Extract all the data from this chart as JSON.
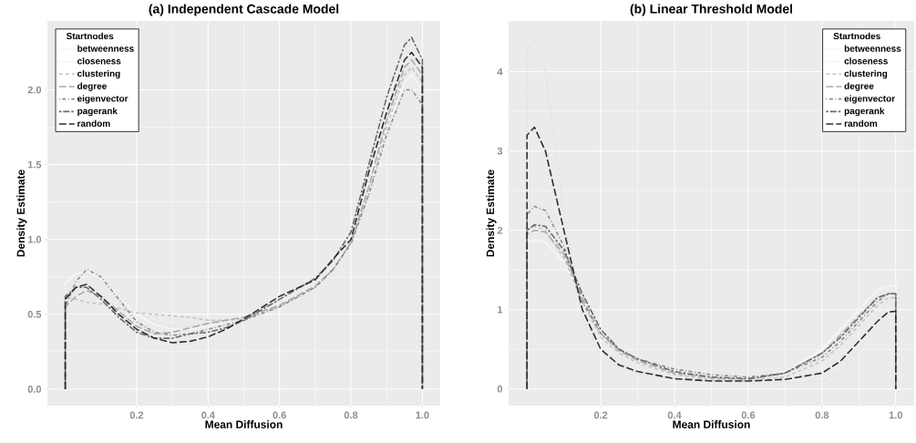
{
  "chart_data": [
    {
      "type": "line",
      "title": "(a) Independent Cascade Model",
      "xlabel": "Mean Diffusion",
      "ylabel": "Density Estimate",
      "legend_title": "Startnodes",
      "legend": "top left",
      "grid": true,
      "xlim": [
        -0.05,
        1.05
      ],
      "ylim": [
        -0.11,
        2.46
      ],
      "xticks": [
        {
          "value": 0.2,
          "label": "0.2"
        },
        {
          "value": 0.4,
          "label": "0.4"
        },
        {
          "value": 0.6,
          "label": "0.6"
        },
        {
          "value": 0.8,
          "label": "0.8"
        },
        {
          "value": 1,
          "label": "1.0"
        }
      ],
      "yticks": [
        {
          "value": 0,
          "label": "0.0"
        },
        {
          "value": 0.5,
          "label": "0.5"
        },
        {
          "value": 1,
          "label": "1.0"
        },
        {
          "value": 1.5,
          "label": "1.5"
        },
        {
          "value": 2,
          "label": "2.0"
        }
      ],
      "x": [
        0,
        0,
        0.03,
        0.06,
        0.1,
        0.15,
        0.2,
        0.25,
        0.3,
        0.35,
        0.4,
        0.45,
        0.5,
        0.6,
        0.7,
        0.75,
        0.8,
        0.85,
        0.9,
        0.95,
        0.97,
        1,
        1
      ],
      "series": [
        {
          "name": "betweenness",
          "color": "#f7f7f7",
          "line_style": "solid",
          "values": [
            0,
            0.7,
            0.77,
            0.79,
            0.74,
            0.62,
            0.5,
            0.43,
            0.4,
            0.4,
            0.42,
            0.45,
            0.48,
            0.57,
            0.7,
            0.82,
            1.0,
            1.3,
            1.75,
            2.05,
            2.1,
            2.0,
            0
          ]
        },
        {
          "name": "closeness",
          "color": "#dcdcdc",
          "line_style": "dotted",
          "values": [
            0,
            0.68,
            0.75,
            0.77,
            0.72,
            0.62,
            0.52,
            0.45,
            0.42,
            0.42,
            0.43,
            0.45,
            0.48,
            0.57,
            0.7,
            0.82,
            1.0,
            1.35,
            1.8,
            2.1,
            2.15,
            2.05,
            0
          ]
        },
        {
          "name": "clustering",
          "color": "#c4c4c4",
          "line_style": "dashed",
          "values": [
            0,
            0.62,
            0.6,
            0.58,
            0.57,
            0.54,
            0.51,
            0.5,
            0.49,
            0.48,
            0.46,
            0.46,
            0.47,
            0.55,
            0.68,
            0.8,
            0.98,
            1.3,
            1.75,
            2.1,
            2.15,
            2.05,
            0
          ]
        },
        {
          "name": "degree",
          "color": "#aaaaaa",
          "line_style": "longdash",
          "values": [
            0,
            0.55,
            0.62,
            0.66,
            0.62,
            0.52,
            0.42,
            0.37,
            0.38,
            0.41,
            0.44,
            0.46,
            0.48,
            0.56,
            0.69,
            0.8,
            0.98,
            1.35,
            1.8,
            2.15,
            2.2,
            2.1,
            0
          ]
        },
        {
          "name": "eigenvector",
          "color": "#8c8c8c",
          "line_style": "dotdash",
          "values": [
            0,
            0.55,
            0.72,
            0.8,
            0.75,
            0.6,
            0.45,
            0.38,
            0.36,
            0.37,
            0.4,
            0.43,
            0.46,
            0.55,
            0.68,
            0.8,
            0.97,
            1.3,
            1.7,
            2.0,
            2.0,
            1.9,
            0
          ]
        },
        {
          "name": "pagerank",
          "color": "#6a6a6a",
          "line_style": "twodash",
          "values": [
            0,
            0.62,
            0.68,
            0.68,
            0.6,
            0.48,
            0.38,
            0.34,
            0.34,
            0.37,
            0.38,
            0.41,
            0.46,
            0.6,
            0.74,
            0.86,
            1.05,
            1.5,
            1.95,
            2.3,
            2.35,
            2.2,
            0
          ]
        },
        {
          "name": "random",
          "color": "#2e2e2e",
          "line_style": "longdash",
          "values": [
            0,
            0.6,
            0.68,
            0.7,
            0.62,
            0.5,
            0.4,
            0.34,
            0.31,
            0.32,
            0.35,
            0.4,
            0.47,
            0.62,
            0.73,
            0.87,
            1.0,
            1.45,
            1.85,
            2.2,
            2.25,
            2.15,
            0
          ]
        }
      ]
    },
    {
      "type": "line",
      "title": "(b) Linear Threshold Model",
      "xlabel": "Mean Diffusion",
      "ylabel": "Density Estimate",
      "legend_title": "Startnodes",
      "legend": "top right",
      "grid": true,
      "xlim": [
        -0.05,
        1.05
      ],
      "ylim": [
        -0.21,
        4.64
      ],
      "xticks": [
        {
          "value": 0.2,
          "label": "0.2"
        },
        {
          "value": 0.4,
          "label": "0.4"
        },
        {
          "value": 0.6,
          "label": "0.6"
        },
        {
          "value": 0.8,
          "label": "0.8"
        },
        {
          "value": 1,
          "label": "1.0"
        }
      ],
      "yticks": [
        0,
        1,
        2,
        3,
        4
      ],
      "x": [
        0,
        0,
        0.02,
        0.05,
        0.1,
        0.15,
        0.2,
        0.25,
        0.3,
        0.4,
        0.5,
        0.6,
        0.7,
        0.8,
        0.85,
        0.9,
        0.95,
        0.98,
        1,
        1
      ],
      "series": [
        {
          "name": "betweenness",
          "color": "#f7f7f7",
          "line_style": "solid",
          "values": [
            0,
            1.85,
            1.88,
            1.85,
            1.6,
            1.15,
            0.7,
            0.5,
            0.38,
            0.22,
            0.15,
            0.13,
            0.22,
            0.5,
            0.75,
            1.0,
            1.25,
            1.3,
            1.3,
            0
          ]
        },
        {
          "name": "closeness",
          "color": "#dcdcdc",
          "line_style": "dotted",
          "values": [
            0,
            4.3,
            4.4,
            4.0,
            2.2,
            0.9,
            0.4,
            0.28,
            0.2,
            0.12,
            0.1,
            0.08,
            0.08,
            0.1,
            0.2,
            0.5,
            0.9,
            1.1,
            1.15,
            0
          ]
        },
        {
          "name": "clustering",
          "color": "#c4c4c4",
          "line_style": "dashed",
          "values": [
            0,
            2.0,
            2.05,
            2.0,
            1.65,
            1.1,
            0.65,
            0.45,
            0.33,
            0.18,
            0.12,
            0.1,
            0.15,
            0.35,
            0.55,
            0.8,
            1.05,
            1.15,
            1.15,
            0
          ]
        },
        {
          "name": "degree",
          "color": "#aaaaaa",
          "line_style": "longdash",
          "values": [
            0,
            1.95,
            2.0,
            1.98,
            1.7,
            1.15,
            0.7,
            0.48,
            0.36,
            0.2,
            0.14,
            0.12,
            0.2,
            0.45,
            0.68,
            0.92,
            1.15,
            1.2,
            1.2,
            0
          ]
        },
        {
          "name": "eigenvector",
          "color": "#8c8c8c",
          "line_style": "dotdash",
          "values": [
            0,
            2.2,
            2.3,
            2.25,
            1.8,
            1.1,
            0.7,
            0.5,
            0.38,
            0.25,
            0.18,
            0.15,
            0.2,
            0.4,
            0.6,
            0.85,
            1.1,
            1.2,
            1.2,
            0
          ]
        },
        {
          "name": "pagerank",
          "color": "#6a6a6a",
          "line_style": "twodash",
          "values": [
            0,
            2.0,
            2.07,
            2.05,
            1.75,
            1.2,
            0.75,
            0.5,
            0.38,
            0.22,
            0.15,
            0.13,
            0.2,
            0.45,
            0.65,
            0.9,
            1.15,
            1.2,
            1.2,
            0
          ]
        },
        {
          "name": "random",
          "color": "#2e2e2e",
          "line_style": "longdash",
          "values": [
            0,
            3.2,
            3.3,
            3.0,
            2.0,
            1.0,
            0.5,
            0.3,
            0.22,
            0.13,
            0.1,
            0.1,
            0.12,
            0.2,
            0.35,
            0.6,
            0.85,
            0.97,
            0.98,
            0
          ]
        }
      ]
    }
  ]
}
